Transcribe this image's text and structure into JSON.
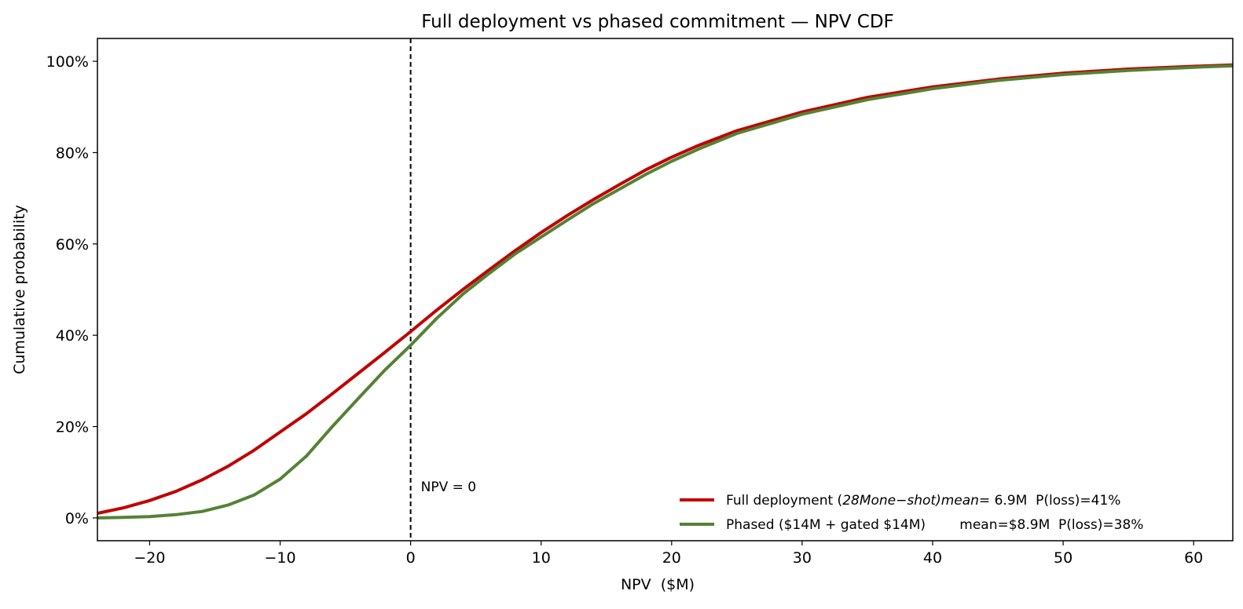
{
  "chart_data": {
    "type": "line",
    "title": "Full deployment vs phased commitment — NPV CDF",
    "xlabel": "NPV  ($M)",
    "ylabel": "Cumulative probability",
    "xlim": [
      -24,
      63
    ],
    "ylim": [
      -0.05,
      1.05
    ],
    "xticks": [
      -20,
      -10,
      0,
      10,
      20,
      30,
      40,
      50,
      60
    ],
    "xtick_labels": [
      "−20",
      "−10",
      "0",
      "10",
      "20",
      "30",
      "40",
      "50",
      "60"
    ],
    "yticks": [
      0,
      0.2,
      0.4,
      0.6,
      0.8,
      1.0
    ],
    "ytick_labels": [
      "0%",
      "20%",
      "40%",
      "60%",
      "80%",
      "100%"
    ],
    "grid": false,
    "legend_position": "lower-right",
    "reference_line": {
      "x": 0,
      "style": "dashed",
      "label": "NPV = 0"
    },
    "series": [
      {
        "name": "Full deployment (28M one-shot)   mean=$6.9M  P(loss)=41%",
        "legend_plain": "Full deployment (",
        "legend_math": "28Mone−shot)mean",
        "legend_rest": "= 6.9M  P(loss)=41%",
        "color": "#c00000",
        "x": [
          -24,
          -22,
          -20,
          -18,
          -16,
          -14,
          -12,
          -10,
          -8,
          -6,
          -4,
          -2,
          0,
          2,
          4,
          6,
          8,
          10,
          12,
          14,
          16,
          18,
          20,
          22,
          25,
          30,
          35,
          40,
          45,
          50,
          55,
          60,
          63
        ],
        "y": [
          0.01,
          0.022,
          0.038,
          0.058,
          0.083,
          0.113,
          0.148,
          0.188,
          0.228,
          0.272,
          0.317,
          0.362,
          0.408,
          0.455,
          0.5,
          0.543,
          0.585,
          0.625,
          0.662,
          0.697,
          0.73,
          0.762,
          0.79,
          0.815,
          0.848,
          0.889,
          0.921,
          0.944,
          0.961,
          0.974,
          0.983,
          0.989,
          0.992
        ]
      },
      {
        "name": "Phased ($14M + gated $14M)        mean=$8.9M  P(loss)=38%",
        "legend_plain": "Phased ($14M + gated $14M)        mean=$8.9M  P(loss)=38%",
        "color": "#548235",
        "x": [
          -24,
          -22,
          -20,
          -18,
          -16,
          -14,
          -12,
          -10,
          -8,
          -6,
          -4,
          -2,
          0,
          2,
          4,
          6,
          8,
          10,
          12,
          14,
          16,
          18,
          20,
          22,
          25,
          30,
          35,
          40,
          45,
          50,
          55,
          60,
          63
        ],
        "y": [
          0.0,
          0.001,
          0.003,
          0.007,
          0.014,
          0.028,
          0.05,
          0.085,
          0.135,
          0.2,
          0.262,
          0.323,
          0.378,
          0.437,
          0.49,
          0.535,
          0.578,
          0.615,
          0.652,
          0.688,
          0.72,
          0.752,
          0.781,
          0.807,
          0.842,
          0.884,
          0.916,
          0.94,
          0.958,
          0.971,
          0.98,
          0.987,
          0.99
        ]
      }
    ]
  }
}
